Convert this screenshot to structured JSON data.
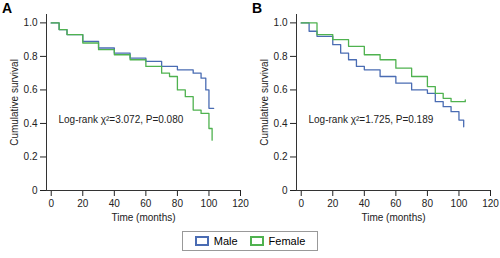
{
  "chart_data": [
    {
      "type": "line",
      "title": "A",
      "line_style": "step",
      "grid": false,
      "xlabel": "Time (months)",
      "ylabel": "Cumulative survival",
      "annotation": "Log-rank χ²=3.072, P=0.080",
      "xlim": [
        -3,
        120
      ],
      "xticks": [
        0,
        20,
        40,
        60,
        80,
        100,
        120
      ],
      "ylim": [
        0,
        1.05
      ],
      "yticks": [
        0,
        0.2,
        0.4,
        0.6,
        0.8,
        {
          "value": 1,
          "label": "1.0"
        }
      ],
      "series": [
        {
          "name": "Male",
          "color": "#4a6cb3",
          "x": [
            0,
            5,
            10,
            20,
            30,
            40,
            50,
            60,
            70,
            80,
            90,
            95,
            98,
            100,
            103
          ],
          "values": [
            1.0,
            0.96,
            0.93,
            0.89,
            0.85,
            0.82,
            0.79,
            0.77,
            0.74,
            0.72,
            0.7,
            0.67,
            0.6,
            0.49,
            0.49
          ]
        },
        {
          "name": "Female",
          "color": "#4fb24f",
          "x": [
            0,
            5,
            10,
            20,
            30,
            40,
            50,
            60,
            70,
            75,
            80,
            85,
            90,
            95,
            100,
            102
          ],
          "values": [
            1.0,
            0.96,
            0.93,
            0.88,
            0.84,
            0.81,
            0.78,
            0.74,
            0.7,
            0.68,
            0.6,
            0.56,
            0.48,
            0.46,
            0.37,
            0.3
          ]
        }
      ]
    },
    {
      "type": "line",
      "title": "B",
      "line_style": "step",
      "grid": false,
      "xlabel": "Time (months)",
      "ylabel": "Cumulative survival",
      "annotation": "Log-rank χ²=1.725, P=0.189",
      "xlim": [
        -3,
        120
      ],
      "xticks": [
        0,
        20,
        40,
        60,
        80,
        100,
        120
      ],
      "ylim": [
        0,
        1.05
      ],
      "yticks": [
        0,
        0.2,
        0.4,
        0.6,
        0.8,
        {
          "value": 1,
          "label": "1.0"
        }
      ],
      "series": [
        {
          "name": "Male",
          "color": "#4a6cb3",
          "x": [
            0,
            5,
            10,
            20,
            25,
            30,
            35,
            40,
            50,
            60,
            70,
            80,
            85,
            90,
            95,
            100,
            103
          ],
          "values": [
            1.0,
            0.95,
            0.92,
            0.87,
            0.82,
            0.78,
            0.74,
            0.72,
            0.68,
            0.64,
            0.6,
            0.58,
            0.53,
            0.5,
            0.47,
            0.42,
            0.38
          ]
        },
        {
          "name": "Female",
          "color": "#4fb24f",
          "x": [
            0,
            10,
            20,
            30,
            40,
            50,
            60,
            70,
            80,
            85,
            90,
            95,
            104
          ],
          "values": [
            1.0,
            0.93,
            0.9,
            0.86,
            0.81,
            0.78,
            0.73,
            0.68,
            0.62,
            0.58,
            0.55,
            0.53,
            0.54
          ]
        }
      ]
    }
  ]
}
